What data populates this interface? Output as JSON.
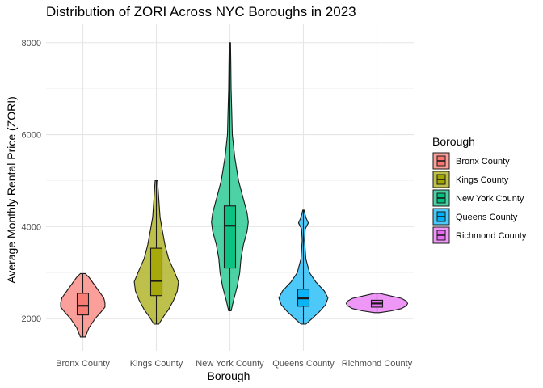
{
  "chart_data": {
    "type": "violin",
    "title": "Distribution of ZORI Across NYC Boroughs in 2023",
    "xlabel": "Borough",
    "ylabel": "Average Monthly Rental Price (ZORI)",
    "ylim": [
      1300,
      8400
    ],
    "yticks": [
      2000,
      4000,
      6000,
      8000
    ],
    "grid": true,
    "legend": {
      "title": "Borough",
      "position": "right"
    },
    "categories": [
      "Bronx County",
      "Kings County",
      "New York County",
      "Queens County",
      "Richmond County"
    ],
    "series": [
      {
        "name": "Bronx County",
        "color": "#F8766D",
        "min": 1600,
        "q1": 2080,
        "median": 2280,
        "q3": 2550,
        "max": 2980,
        "density": [
          [
            1600,
            0.02
          ],
          [
            1800,
            0.05
          ],
          [
            2000,
            0.1
          ],
          [
            2150,
            0.15
          ],
          [
            2250,
            0.18
          ],
          [
            2350,
            0.18
          ],
          [
            2450,
            0.17
          ],
          [
            2600,
            0.13
          ],
          [
            2750,
            0.09
          ],
          [
            2900,
            0.05
          ],
          [
            2980,
            0.02
          ]
        ]
      },
      {
        "name": "Kings County",
        "color": "#A3A500",
        "min": 1880,
        "q1": 2500,
        "median": 2820,
        "q3": 3530,
        "max": 5000,
        "density": [
          [
            1880,
            0.02
          ],
          [
            2050,
            0.06
          ],
          [
            2200,
            0.1
          ],
          [
            2400,
            0.14
          ],
          [
            2600,
            0.17
          ],
          [
            2800,
            0.18
          ],
          [
            3000,
            0.15
          ],
          [
            3300,
            0.1
          ],
          [
            3600,
            0.07
          ],
          [
            3900,
            0.05
          ],
          [
            4200,
            0.03
          ],
          [
            4600,
            0.02
          ],
          [
            5000,
            0.01
          ]
        ]
      },
      {
        "name": "New York County",
        "color": "#00BF7D",
        "min": 2170,
        "q1": 3100,
        "median": 4020,
        "q3": 4450,
        "max": 8000,
        "density": [
          [
            2170,
            0.01
          ],
          [
            2400,
            0.03
          ],
          [
            2700,
            0.06
          ],
          [
            3000,
            0.08
          ],
          [
            3300,
            0.09
          ],
          [
            3600,
            0.11
          ],
          [
            3900,
            0.14
          ],
          [
            4100,
            0.15
          ],
          [
            4300,
            0.14
          ],
          [
            4600,
            0.11
          ],
          [
            5000,
            0.07
          ],
          [
            5500,
            0.04
          ],
          [
            6000,
            0.02
          ],
          [
            6500,
            0.015
          ],
          [
            7000,
            0.01
          ],
          [
            7500,
            0.008
          ],
          [
            8000,
            0.005
          ]
        ]
      },
      {
        "name": "Queens County",
        "color": "#00B0F6",
        "min": 1880,
        "q1": 2270,
        "median": 2440,
        "q3": 2640,
        "max": 4360,
        "density": [
          [
            1880,
            0.02
          ],
          [
            2000,
            0.07
          ],
          [
            2150,
            0.13
          ],
          [
            2300,
            0.18
          ],
          [
            2450,
            0.2
          ],
          [
            2600,
            0.17
          ],
          [
            2800,
            0.1
          ],
          [
            3000,
            0.05
          ],
          [
            3300,
            0.02
          ],
          [
            3700,
            0.01
          ],
          [
            3950,
            0.015
          ],
          [
            4080,
            0.04
          ],
          [
            4200,
            0.02
          ],
          [
            4360,
            0.005
          ]
        ]
      },
      {
        "name": "Richmond County",
        "color": "#E76BF3",
        "min": 2130,
        "q1": 2250,
        "median": 2330,
        "q3": 2400,
        "max": 2550,
        "density": [
          [
            2130,
            0.02
          ],
          [
            2170,
            0.12
          ],
          [
            2220,
            0.2
          ],
          [
            2280,
            0.24
          ],
          [
            2330,
            0.25
          ],
          [
            2380,
            0.24
          ],
          [
            2440,
            0.2
          ],
          [
            2500,
            0.1
          ],
          [
            2550,
            0.02
          ]
        ]
      }
    ]
  }
}
